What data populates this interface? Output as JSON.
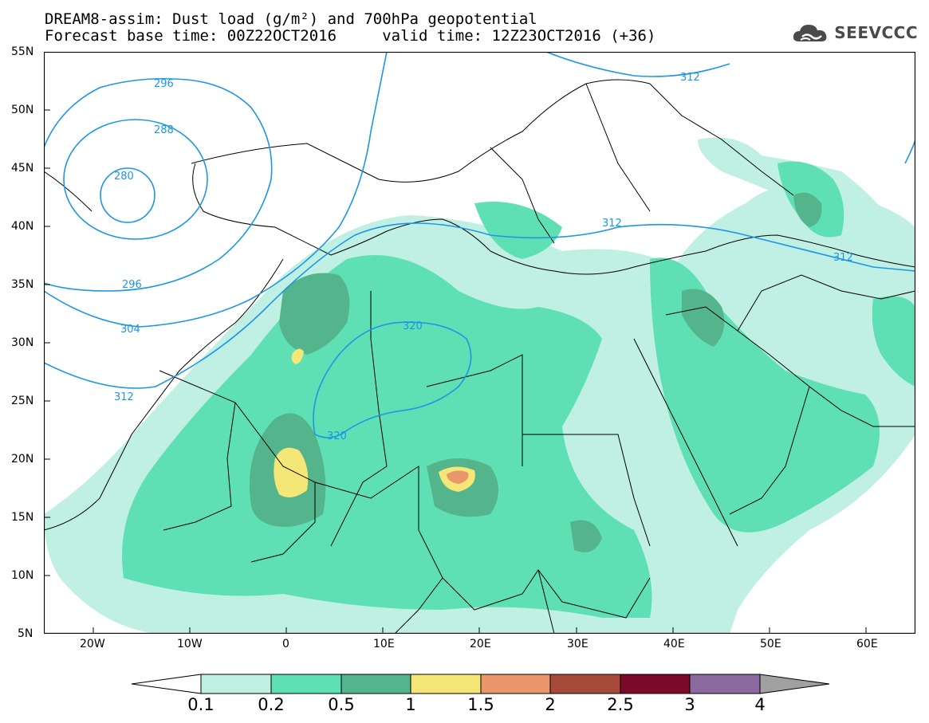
{
  "header": {
    "title_line1": "DREAM8-assim: Dust load (g/m²) and 700hPa geopotential",
    "title_line2": "Forecast base time: 00Z22OCT2016     valid time: 12Z23OCT2016 (+36)",
    "logo_text": "SEEVCCC",
    "logo_icon": "cloud-logo-icon"
  },
  "map": {
    "lat_labels": [
      "55N",
      "50N",
      "45N",
      "40N",
      "35N",
      "30N",
      "25N",
      "20N",
      "15N",
      "10N",
      "5N"
    ],
    "lon_labels": [
      "20W",
      "10W",
      "0",
      "10E",
      "20E",
      "30E",
      "40E",
      "50E",
      "60E"
    ],
    "contour_labels": [
      "296",
      "288",
      "280",
      "296",
      "304",
      "312",
      "320",
      "320",
      "312",
      "312",
      "312"
    ],
    "contour_color": "#1e96e6",
    "border_color": "#000000"
  },
  "colorbar": {
    "labels": [
      "0.1",
      "0.2",
      "0.5",
      "1",
      "1.5",
      "2",
      "2.5",
      "3",
      "4"
    ],
    "colors": [
      "#ffffff",
      "#bff0e3",
      "#5ee0b4",
      "#54b48c",
      "#f5e678",
      "#e8966a",
      "#a84a3a",
      "#7a0a28",
      "#8c6aa0",
      "#a0a0a0"
    ]
  }
}
